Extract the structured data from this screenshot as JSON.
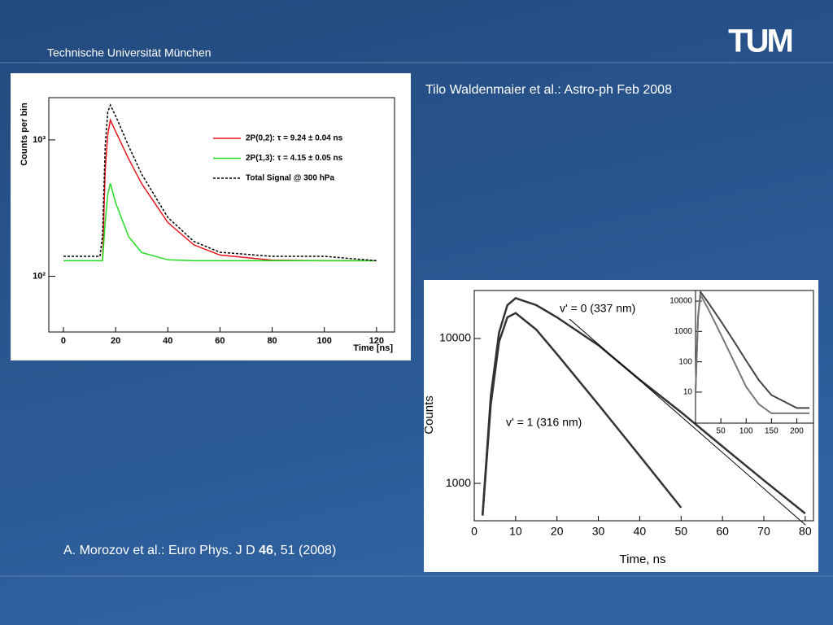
{
  "header": {
    "institution": "Technische Universität München",
    "logo": "TUM"
  },
  "figures": [
    {
      "caption": "Tilo Waldenmaier et al.: Astro-ph Feb 2008",
      "chart_data": {
        "type": "line",
        "x_label": "Time [ns]",
        "y_label": "Counts per bin",
        "log_y": true,
        "xlim": [
          -5.6,
          126.9
        ],
        "xticks": [
          0,
          20,
          40,
          60,
          80,
          100,
          120
        ],
        "ylim": [
          39,
          2040
        ],
        "yticks": [
          {
            "value": 100,
            "label": "10²"
          },
          {
            "value": 1000,
            "label": "10³"
          }
        ],
        "legend": "upper right",
        "x": [
          0,
          5,
          10,
          14,
          15,
          16,
          17,
          18,
          20,
          25,
          30,
          40,
          50,
          60,
          80,
          100,
          120
        ],
        "series": [
          {
            "name": "2P(0,2): τ = 9.24 ± 0.04 ns",
            "color": "#e8141c",
            "values": [
              null,
              null,
              null,
              null,
              130,
              600,
              1100,
              1400,
              1154,
              725,
              477,
              248,
              170,
              143,
              131,
              130,
              130
            ]
          },
          {
            "name": "2P(1,3): τ = 4.15 ± 0.05 ns",
            "color": "#22dd22",
            "values": [
              130,
              130,
              130,
              130,
              130,
              250,
              400,
              480,
              346,
              195,
              149,
              132,
              130,
              130,
              130,
              130,
              130
            ]
          },
          {
            "name": "Total Signal @ 300 hPa",
            "color": "#000000",
            "dashed": true,
            "values": [
              140,
              140,
              140,
              140,
              200,
              900,
              1600,
              1800,
              1500,
              900,
              560,
              270,
              180,
              150,
              140,
              140,
              130
            ]
          }
        ]
      }
    },
    {
      "caption_parts": [
        "A. Morozov et al.: Euro Phys. J D ",
        "46",
        ", 51 (2008)"
      ],
      "chart_data": {
        "type": "line",
        "x_label": "Time, ns",
        "y_label": "Counts",
        "log_y": true,
        "xlim": [
          0,
          82
        ],
        "xticks": [
          0,
          10,
          20,
          30,
          40,
          50,
          60,
          70,
          80
        ],
        "ylim": [
          552,
          21450
        ],
        "yticks": [
          1000,
          10000
        ],
        "x": [
          2,
          4,
          6,
          8,
          10,
          15,
          20,
          30,
          40,
          50,
          60,
          70,
          80
        ],
        "series": [
          {
            "name": "v' = 0 (337 nm)",
            "color": "#333333",
            "values": [
              600,
              4000,
              11000,
              17000,
              19000,
              17000,
              14000,
              9000,
              5200,
              3100,
              1800,
              1050,
              620
            ]
          },
          {
            "name": "v' = 1 (316 nm)",
            "color": "#333333",
            "values": [
              600,
              3500,
              9500,
              14000,
              15000,
              11500,
              7800,
              3500,
              1550,
              680,
              null,
              null,
              null
            ]
          }
        ],
        "inset": {
          "type": "line",
          "log_y": true,
          "xlim": [
            0,
            233
          ],
          "xticks": [
            50,
            100,
            150,
            200
          ],
          "ylim": [
            0.95,
            22400
          ],
          "yticks": [
            10,
            100,
            1000,
            10000
          ],
          "x": [
            0,
            5,
            10,
            25,
            50,
            75,
            100,
            125,
            150,
            200,
            225
          ],
          "series": [
            {
              "color": "#444444",
              "values": [
                10,
                3000,
                20000,
                9000,
                2200,
                500,
                110,
                25,
                8,
                3,
                3
              ]
            },
            {
              "color": "#777777",
              "values": [
                10,
                3000,
                16000,
                5500,
                800,
                110,
                15,
                4,
                2,
                2,
                2
              ]
            }
          ]
        }
      }
    }
  ]
}
